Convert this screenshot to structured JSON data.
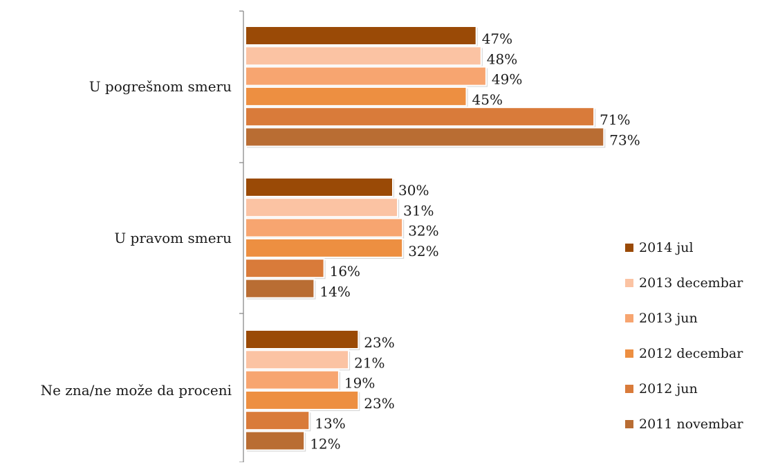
{
  "chart_data": {
    "type": "bar",
    "orientation": "horizontal",
    "categories": [
      "U pogrešnom smeru",
      "U pravom smeru",
      "Ne zna/ne može da proceni"
    ],
    "series": [
      {
        "name": "2014 jul",
        "values": [
          47,
          30,
          23
        ],
        "labels": [
          "47%",
          "30%",
          "23%"
        ],
        "color": "#9a4a06"
      },
      {
        "name": "2013 decembar",
        "values": [
          48,
          31,
          21
        ],
        "labels": [
          "48%",
          "31%",
          "21%"
        ],
        "color": "#fbc3a3"
      },
      {
        "name": "2013 jun",
        "values": [
          49,
          32,
          19
        ],
        "labels": [
          "49%",
          "32%",
          "19%"
        ],
        "color": "#f7a570"
      },
      {
        "name": "2012 decembar",
        "values": [
          45,
          32,
          23
        ],
        "labels": [
          "45%",
          "32%",
          "23%"
        ],
        "color": "#ed8f41"
      },
      {
        "name": "2012 jun",
        "values": [
          71,
          16,
          13
        ],
        "labels": [
          "71%",
          "16%",
          "13%"
        ],
        "color": "#d97b3a"
      },
      {
        "name": "2011 novembar",
        "values": [
          73,
          14,
          12
        ],
        "labels": [
          "73%",
          "14%",
          "12%"
        ],
        "color": "#b96d33"
      }
    ],
    "xlim": [
      0,
      75
    ],
    "grid": false,
    "legend_position": "right"
  }
}
